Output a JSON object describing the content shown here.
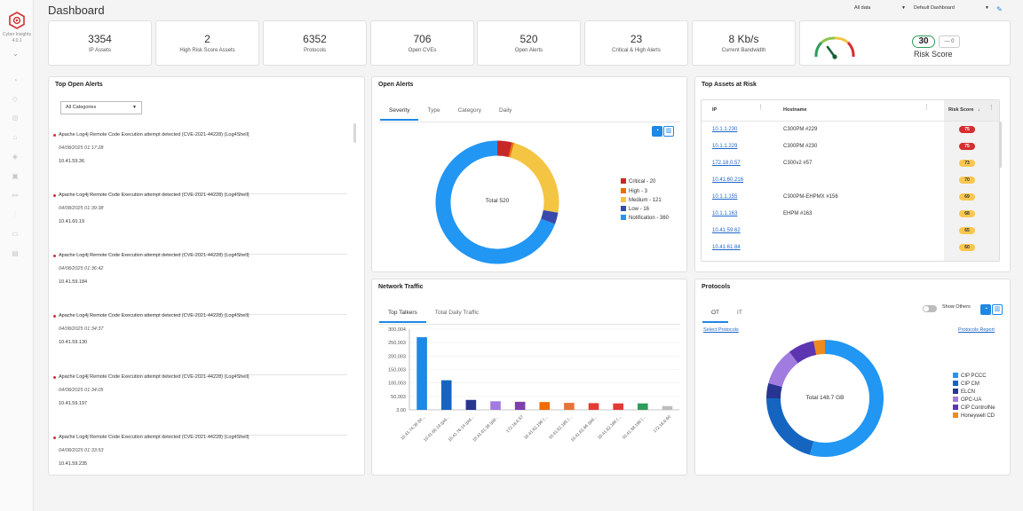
{
  "app": {
    "brand": "Cyber Insights",
    "version": "4.0.1"
  },
  "header": {
    "title": "Dashboard",
    "filter_data": "All data",
    "filter_dashboard": "Default Dashboard"
  },
  "kpis": [
    {
      "value": "3354",
      "label": "IP Assets"
    },
    {
      "value": "2",
      "label": "High Risk Score Assets"
    },
    {
      "value": "6352",
      "label": "Protocols"
    },
    {
      "value": "706",
      "label": "Open CVEs"
    },
    {
      "value": "520",
      "label": "Open Alerts"
    },
    {
      "value": "23",
      "label": "Critical & High Alerts"
    },
    {
      "value": "8 Kb/s",
      "label": "Current Bandwidth"
    }
  ],
  "risk": {
    "score": "30",
    "change": "0",
    "change_prefix": "—",
    "label": "Risk Score"
  },
  "top_alerts": {
    "title": "Top Open Alerts",
    "filter": "All Categories",
    "items": [
      {
        "title": "Apache Log4j Remote Code Execution attempt detected (CVE-2021-44228) (Log4Shell)",
        "time": "04/08/2025 01:17:28",
        "ip": "10.41.59.36"
      },
      {
        "title": "Apache Log4j Remote Code Execution attempt detected (CVE-2021-44228) (Log4Shell)",
        "time": "04/08/2025 01:39:38",
        "ip": "10.41.60.19"
      },
      {
        "title": "Apache Log4j Remote Code Execution attempt detected (CVE-2021-44228) (Log4Shell)",
        "time": "04/08/2025 01:36:42",
        "ip": "10.41.59.184"
      },
      {
        "title": "Apache Log4j Remote Code Execution attempt detected (CVE-2021-44228) (Log4Shell)",
        "time": "04/08/2025 01:34:37",
        "ip": "10.41.59.130"
      },
      {
        "title": "Apache Log4j Remote Code Execution attempt detected (CVE-2021-44228) (Log4Shell)",
        "time": "04/08/2025 01:34:05",
        "ip": "10.41.59.197"
      },
      {
        "title": "Apache Log4j Remote Code Execution attempt detected (CVE-2021-44228) (Log4Shell)",
        "time": "04/08/2025 01:33:53",
        "ip": "10.41.59.235"
      }
    ]
  },
  "open_alerts": {
    "title": "Open Alerts",
    "tabs": [
      "Severity",
      "Type",
      "Category",
      "Daily"
    ],
    "center": "Total 520",
    "legend": [
      {
        "label": "Critical - 20",
        "color": "#c62828"
      },
      {
        "label": "High - 3",
        "color": "#ef6c00"
      },
      {
        "label": "Medium - 121",
        "color": "#f4c542"
      },
      {
        "label": "Low - 16",
        "color": "#3949ab"
      },
      {
        "label": "Notification - 360",
        "color": "#2196f3"
      }
    ]
  },
  "assets": {
    "title": "Top Assets at Risk",
    "headers": {
      "ip": "IP",
      "host": "Hostname",
      "risk": "Risk Score"
    },
    "rows": [
      {
        "ip": "10.1.1.230",
        "host": "C300PM #229",
        "score": "75",
        "color": "#d32f2f",
        "text": "#fff"
      },
      {
        "ip": "10.1.1.229",
        "host": "C300PM #230",
        "score": "75",
        "color": "#d32f2f",
        "text": "#fff"
      },
      {
        "ip": "172.18.0.57",
        "host": "C300v2 #57",
        "score": "73",
        "color": "#f9c74f",
        "text": "#333"
      },
      {
        "ip": "10.41.60.216",
        "host": "",
        "score": "70",
        "color": "#f9c74f",
        "text": "#333"
      },
      {
        "ip": "10.1.1.155",
        "host": "C300PM-EHPMX #156",
        "score": "69",
        "color": "#f9c74f",
        "text": "#333"
      },
      {
        "ip": "10.1.1.163",
        "host": "EHPM #163",
        "score": "68",
        "color": "#f9c74f",
        "text": "#333"
      },
      {
        "ip": "10.41.59.62",
        "host": "",
        "score": "65",
        "color": "#f9c74f",
        "text": "#333"
      },
      {
        "ip": "10.41.61.84",
        "host": "",
        "score": "60",
        "color": "#f9c74f",
        "text": "#333"
      }
    ]
  },
  "traffic": {
    "title": "Network Traffic",
    "tabs": [
      "Top Talkers",
      "Total Daily Traffic"
    ]
  },
  "protocols": {
    "title": "Protocols",
    "tabs": [
      "OT",
      "IT"
    ],
    "toggle": "Show Others",
    "select_link": "Select Protocols",
    "report_link": "Protocols Report",
    "center": "Total 148.7 GB",
    "legend": [
      {
        "label": "CIP PCCC",
        "color": "#2196f3"
      },
      {
        "label": "CIP CM",
        "color": "#1565c0"
      },
      {
        "label": "ELCN",
        "color": "#283593"
      },
      {
        "label": "OPC-UA",
        "color": "#a17be0"
      },
      {
        "label": "CIP ControlNe",
        "color": "#5e35b1"
      },
      {
        "label": "Honeywell CD",
        "color": "#ef8a1c"
      }
    ]
  },
  "chart_data": [
    {
      "type": "pie",
      "title": "Open Alerts",
      "center_label": "Total 520",
      "categories": [
        "Critical",
        "High",
        "Medium",
        "Low",
        "Notification"
      ],
      "values": [
        20,
        3,
        121,
        16,
        360
      ],
      "colors": [
        "#c62828",
        "#ef6c00",
        "#f4c542",
        "#3949ab",
        "#2196f3"
      ]
    },
    {
      "type": "bar",
      "title": "Network Traffic",
      "categories": [
        "10.41.74.36 (bl…",
        "10.41.60.19 (pid…",
        "10.41.76.14 (pid…",
        "10.41.61.38 (pid…",
        "172.18.0.57",
        "10.41.62.196 (…",
        "10.41.62.185 (…",
        "10.41.62.66 (pid…",
        "10.41.62.186 (…",
        "10.41.58.196 (…",
        "172.18.0.60"
      ],
      "values": [
        270000,
        110000,
        37000,
        32000,
        30000,
        29000,
        26000,
        25000,
        24000,
        24000,
        14000
      ],
      "colors": [
        "#1e88e5",
        "#1565c0",
        "#283593",
        "#a17be0",
        "#7e3fb0",
        "#ef6c00",
        "#e8743b",
        "#e53935",
        "#e53935",
        "#2e9d5b",
        "#bdbdbd"
      ],
      "yticks": [
        "300,004",
        "250,003",
        "200,003",
        "150,003",
        "100,003",
        "50,003",
        "3.00"
      ],
      "ylim": [
        0,
        300000
      ]
    },
    {
      "type": "pie",
      "title": "Protocols",
      "center_label": "Total 148.7 GB",
      "categories": [
        "CIP PCCC",
        "CIP CM",
        "ELCN",
        "OPC-UA",
        "CIP ControlNe",
        "Honeywell CD"
      ],
      "values": [
        52,
        20,
        4,
        10,
        7,
        3
      ],
      "colors": [
        "#2196f3",
        "#1565c0",
        "#283593",
        "#a17be0",
        "#5e35b1",
        "#ef8a1c"
      ]
    }
  ]
}
